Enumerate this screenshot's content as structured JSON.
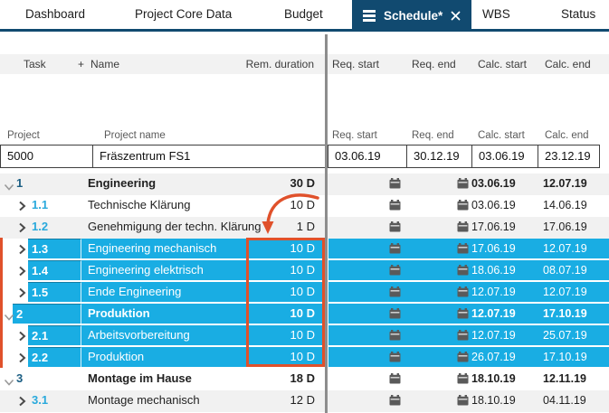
{
  "tabs": {
    "items": [
      {
        "label": "Dashboard",
        "active": false
      },
      {
        "label": "Project Core Data",
        "active": false
      },
      {
        "label": "Budget",
        "active": false
      },
      {
        "label": "Schedule*",
        "active": true
      },
      {
        "label": "WBS",
        "active": false
      },
      {
        "label": "Status",
        "active": false
      }
    ]
  },
  "columns": {
    "task": "Task",
    "add": "+",
    "name": "Name",
    "rem_duration": "Rem. duration",
    "req_start": "Req. start",
    "req_end": "Req. end",
    "calc_start": "Calc. start",
    "calc_end": "Calc. end"
  },
  "project": {
    "project_label": "Project",
    "project_name_label": "Project name",
    "req_start_label": "Req. start",
    "req_end_label": "Req. end",
    "calc_start_label": "Calc. start",
    "calc_end_label": "Calc. end",
    "id": "5000",
    "name": "Fräszentrum FS1",
    "req_start": "03.06.19",
    "req_end": "30.12.19",
    "calc_start": "03.06.19",
    "calc_end": "23.12.19"
  },
  "rows": [
    {
      "task": "1",
      "level": 1,
      "name": "Engineering",
      "duration": "30 D",
      "bold": true,
      "selected": false,
      "zebra": "gray",
      "calc_start": "03.06.19",
      "calc_end": "12.07.19"
    },
    {
      "task": "1.1",
      "level": 2,
      "name": "Technische Klärung",
      "duration": "10 D",
      "bold": false,
      "selected": false,
      "zebra": "white",
      "calc_start": "03.06.19",
      "calc_end": "14.06.19"
    },
    {
      "task": "1.2",
      "level": 2,
      "name": "Genehmigung der techn. Klärung",
      "duration": "1 D",
      "bold": false,
      "selected": false,
      "zebra": "gray",
      "calc_start": "17.06.19",
      "calc_end": "17.06.19"
    },
    {
      "task": "1.3",
      "level": 2,
      "name": "Engineering mechanisch",
      "duration": "10 D",
      "bold": false,
      "selected": true,
      "zebra": "white",
      "calc_start": "17.06.19",
      "calc_end": "12.07.19"
    },
    {
      "task": "1.4",
      "level": 2,
      "name": "Engineering elektrisch",
      "duration": "10 D",
      "bold": false,
      "selected": true,
      "zebra": "gray",
      "calc_start": "18.06.19",
      "calc_end": "08.07.19"
    },
    {
      "task": "1.5",
      "level": 2,
      "name": "Ende Engineering",
      "duration": "10 D",
      "bold": false,
      "selected": true,
      "zebra": "white",
      "calc_start": "12.07.19",
      "calc_end": "12.07.19"
    },
    {
      "task": "2",
      "level": 1,
      "name": "Produktion",
      "duration": "10 D",
      "bold": true,
      "selected": true,
      "zebra": "gray",
      "calc_start": "12.07.19",
      "calc_end": "17.10.19"
    },
    {
      "task": "2.1",
      "level": 2,
      "name": "Arbeitsvorbereitung",
      "duration": "10 D",
      "bold": false,
      "selected": true,
      "zebra": "white",
      "calc_start": "12.07.19",
      "calc_end": "25.07.19"
    },
    {
      "task": "2.2",
      "level": 2,
      "name": "Produktion",
      "duration": "10 D",
      "bold": false,
      "selected": true,
      "zebra": "gray",
      "calc_start": "26.07.19",
      "calc_end": "17.10.19"
    },
    {
      "task": "3",
      "level": 1,
      "name": "Montage im Hause",
      "duration": "18 D",
      "bold": true,
      "selected": false,
      "zebra": "white",
      "calc_start": "18.10.19",
      "calc_end": "12.11.19"
    },
    {
      "task": "3.1",
      "level": 2,
      "name": "Montage mechanisch",
      "duration": "12 D",
      "bold": false,
      "selected": false,
      "zebra": "gray",
      "calc_start": "18.10.19",
      "calc_end": "04.11.19"
    }
  ],
  "icons": {
    "hamburger": "menu-icon",
    "close": "close-icon",
    "calendar": "calendar-icon",
    "chevron_down": "chevron-down-icon",
    "chevron_right": "chevron-right-icon"
  },
  "colors": {
    "active_tab": "#114a70",
    "selection_highlight": "#19ade3",
    "annotation_red": "#e0512b",
    "zebra_gray": "#f1f1f1",
    "task_number_child": "#29a9dc",
    "task_number_parent": "#1b5e83"
  }
}
